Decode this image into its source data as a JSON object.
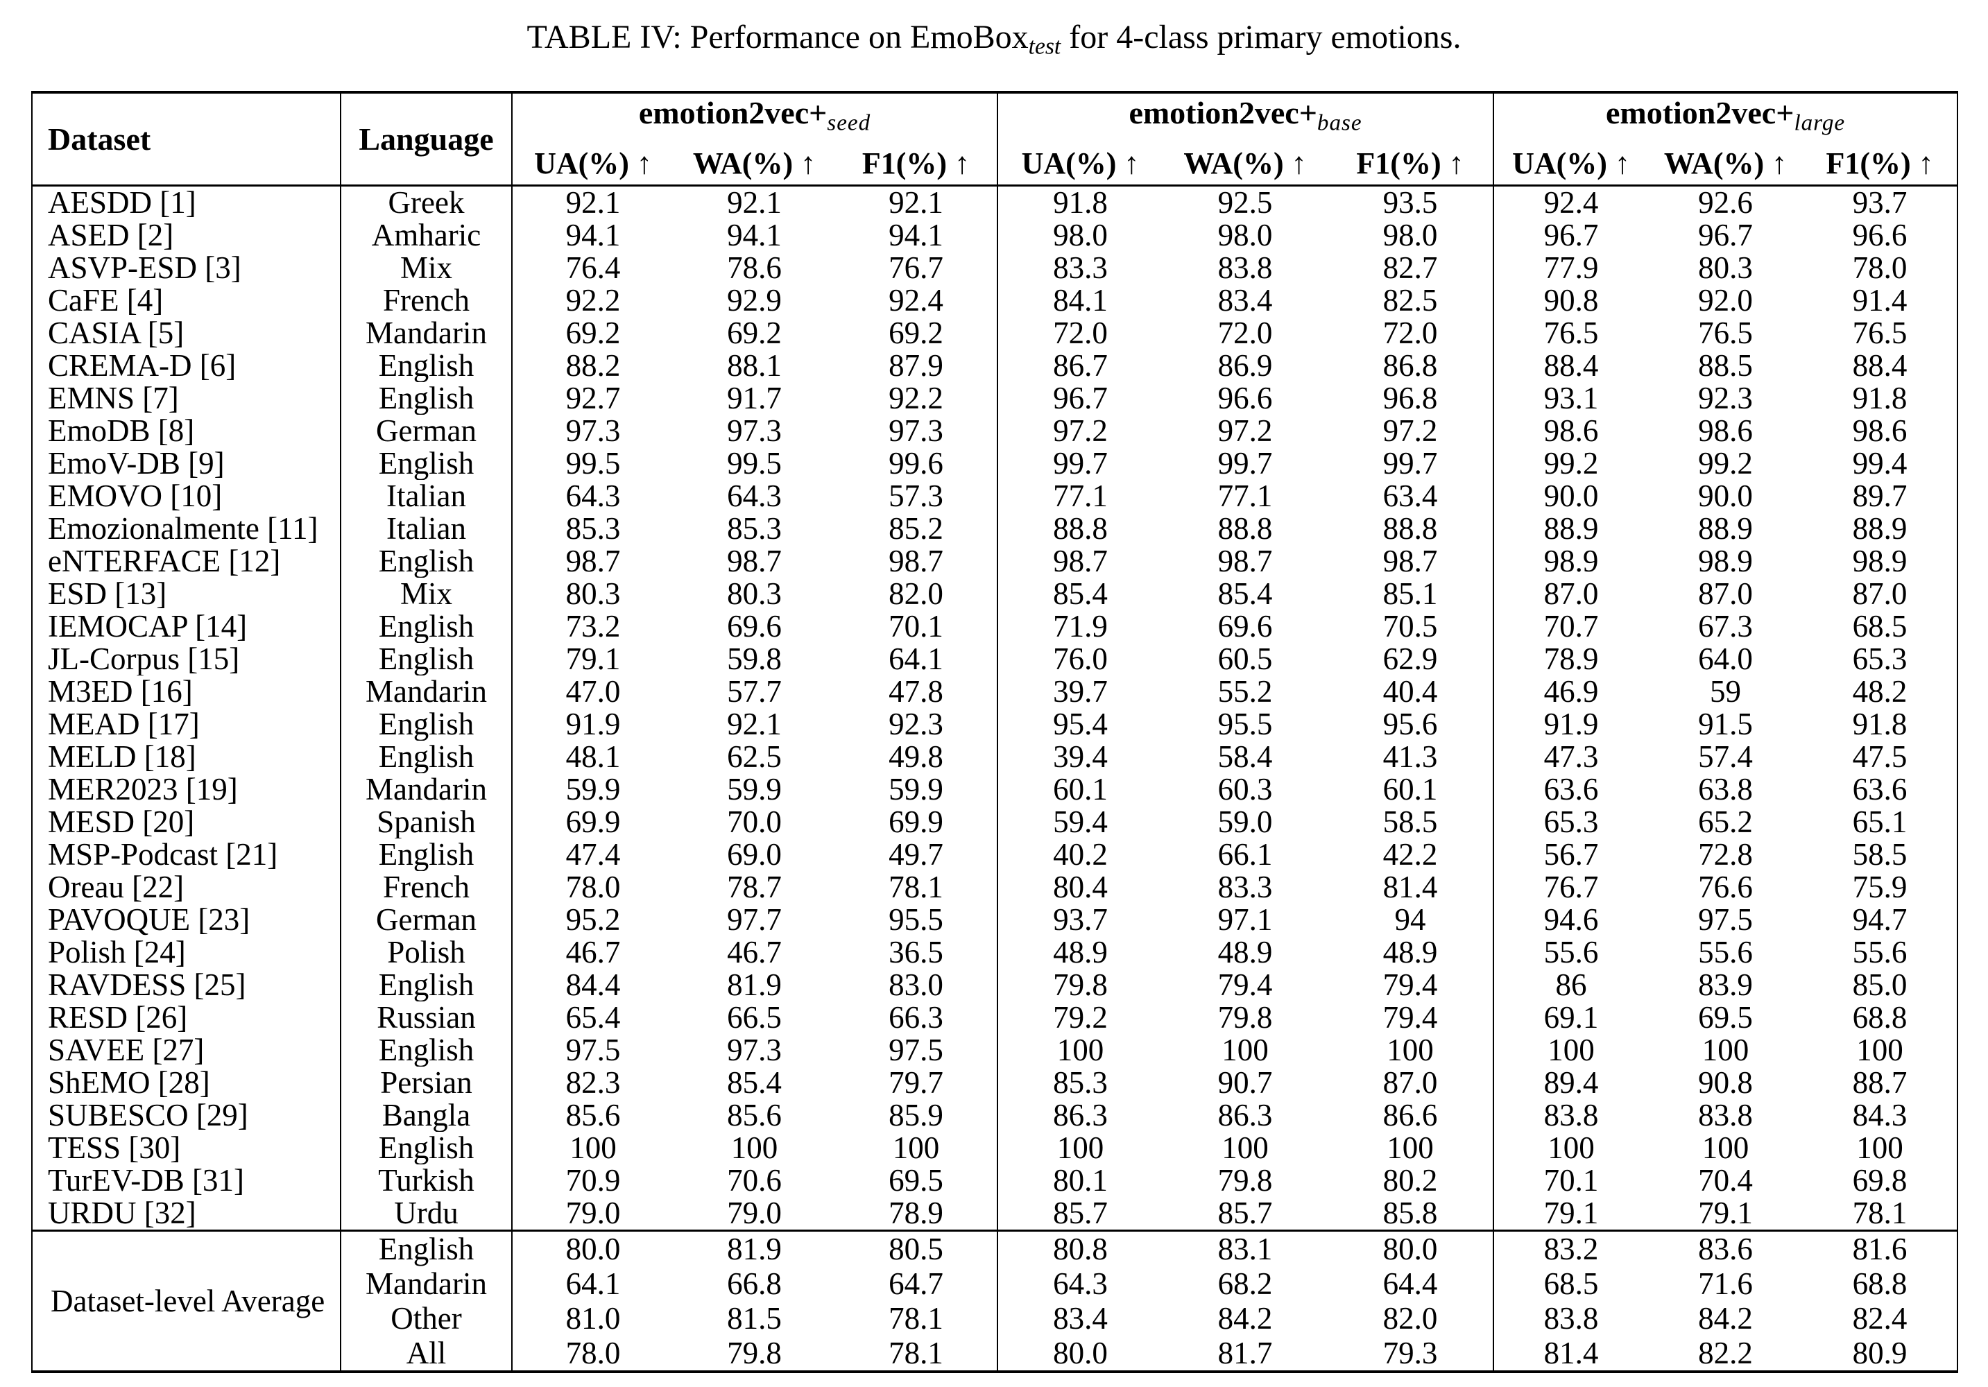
{
  "page_title": {
    "prefix": "TABLE IV: Performance on EmoBox",
    "subscript": "test",
    "suffix": " for 4-class primary emotions."
  },
  "colors": {
    "text": "#000000",
    "background": "#ffffff",
    "rule": "#000000"
  },
  "table": {
    "columns": {
      "dataset": "Dataset",
      "language": "Language"
    },
    "groups": [
      {
        "name": "emotion2vec+",
        "subscript": "seed",
        "metrics": [
          "UA(%) ↑",
          "WA(%) ↑",
          "F1(%) ↑"
        ]
      },
      {
        "name": "emotion2vec+",
        "subscript": "base",
        "metrics": [
          "UA(%) ↑",
          "WA(%) ↑",
          "F1(%) ↑"
        ]
      },
      {
        "name": "emotion2vec+",
        "subscript": "large",
        "metrics": [
          "UA(%) ↑",
          "WA(%) ↑",
          "F1(%) ↑"
        ]
      }
    ],
    "rows": [
      {
        "dataset": "AESDD [1]",
        "language": "Greek",
        "seed": [
          "92.1",
          "92.1",
          "92.1"
        ],
        "base": [
          "91.8",
          "92.5",
          "93.5"
        ],
        "large": [
          "92.4",
          "92.6",
          "93.7"
        ]
      },
      {
        "dataset": "ASED [2]",
        "language": "Amharic",
        "seed": [
          "94.1",
          "94.1",
          "94.1"
        ],
        "base": [
          "98.0",
          "98.0",
          "98.0"
        ],
        "large": [
          "96.7",
          "96.7",
          "96.6"
        ]
      },
      {
        "dataset": "ASVP-ESD [3]",
        "language": "Mix",
        "seed": [
          "76.4",
          "78.6",
          "76.7"
        ],
        "base": [
          "83.3",
          "83.8",
          "82.7"
        ],
        "large": [
          "77.9",
          "80.3",
          "78.0"
        ]
      },
      {
        "dataset": "CaFE [4]",
        "language": "French",
        "seed": [
          "92.2",
          "92.9",
          "92.4"
        ],
        "base": [
          "84.1",
          "83.4",
          "82.5"
        ],
        "large": [
          "90.8",
          "92.0",
          "91.4"
        ]
      },
      {
        "dataset": "CASIA [5]",
        "language": "Mandarin",
        "seed": [
          "69.2",
          "69.2",
          "69.2"
        ],
        "base": [
          "72.0",
          "72.0",
          "72.0"
        ],
        "large": [
          "76.5",
          "76.5",
          "76.5"
        ]
      },
      {
        "dataset": "CREMA-D [6]",
        "language": "English",
        "seed": [
          "88.2",
          "88.1",
          "87.9"
        ],
        "base": [
          "86.7",
          "86.9",
          "86.8"
        ],
        "large": [
          "88.4",
          "88.5",
          "88.4"
        ]
      },
      {
        "dataset": "EMNS [7]",
        "language": "English",
        "seed": [
          "92.7",
          "91.7",
          "92.2"
        ],
        "base": [
          "96.7",
          "96.6",
          "96.8"
        ],
        "large": [
          "93.1",
          "92.3",
          "91.8"
        ]
      },
      {
        "dataset": "EmoDB [8]",
        "language": "German",
        "seed": [
          "97.3",
          "97.3",
          "97.3"
        ],
        "base": [
          "97.2",
          "97.2",
          "97.2"
        ],
        "large": [
          "98.6",
          "98.6",
          "98.6"
        ]
      },
      {
        "dataset": "EmoV-DB [9]",
        "language": "English",
        "seed": [
          "99.5",
          "99.5",
          "99.6"
        ],
        "base": [
          "99.7",
          "99.7",
          "99.7"
        ],
        "large": [
          "99.2",
          "99.2",
          "99.4"
        ]
      },
      {
        "dataset": "EMOVO [10]",
        "language": "Italian",
        "seed": [
          "64.3",
          "64.3",
          "57.3"
        ],
        "base": [
          "77.1",
          "77.1",
          "63.4"
        ],
        "large": [
          "90.0",
          "90.0",
          "89.7"
        ]
      },
      {
        "dataset": "Emozionalmente [11]",
        "language": "Italian",
        "seed": [
          "85.3",
          "85.3",
          "85.2"
        ],
        "base": [
          "88.8",
          "88.8",
          "88.8"
        ],
        "large": [
          "88.9",
          "88.9",
          "88.9"
        ]
      },
      {
        "dataset": "eNTERFACE [12]",
        "language": "English",
        "seed": [
          "98.7",
          "98.7",
          "98.7"
        ],
        "base": [
          "98.7",
          "98.7",
          "98.7"
        ],
        "large": [
          "98.9",
          "98.9",
          "98.9"
        ]
      },
      {
        "dataset": "ESD [13]",
        "language": "Mix",
        "seed": [
          "80.3",
          "80.3",
          "82.0"
        ],
        "base": [
          "85.4",
          "85.4",
          "85.1"
        ],
        "large": [
          "87.0",
          "87.0",
          "87.0"
        ]
      },
      {
        "dataset": "IEMOCAP [14]",
        "language": "English",
        "seed": [
          "73.2",
          "69.6",
          "70.1"
        ],
        "base": [
          "71.9",
          "69.6",
          "70.5"
        ],
        "large": [
          "70.7",
          "67.3",
          "68.5"
        ]
      },
      {
        "dataset": "JL-Corpus [15]",
        "language": "English",
        "seed": [
          "79.1",
          "59.8",
          "64.1"
        ],
        "base": [
          "76.0",
          "60.5",
          "62.9"
        ],
        "large": [
          "78.9",
          "64.0",
          "65.3"
        ]
      },
      {
        "dataset": "M3ED [16]",
        "language": "Mandarin",
        "seed": [
          "47.0",
          "57.7",
          "47.8"
        ],
        "base": [
          "39.7",
          "55.2",
          "40.4"
        ],
        "large": [
          "46.9",
          "59",
          "48.2"
        ]
      },
      {
        "dataset": "MEAD [17]",
        "language": "English",
        "seed": [
          "91.9",
          "92.1",
          "92.3"
        ],
        "base": [
          "95.4",
          "95.5",
          "95.6"
        ],
        "large": [
          "91.9",
          "91.5",
          "91.8"
        ]
      },
      {
        "dataset": "MELD [18]",
        "language": "English",
        "seed": [
          "48.1",
          "62.5",
          "49.8"
        ],
        "base": [
          "39.4",
          "58.4",
          "41.3"
        ],
        "large": [
          "47.3",
          "57.4",
          "47.5"
        ]
      },
      {
        "dataset": "MER2023 [19]",
        "language": "Mandarin",
        "seed": [
          "59.9",
          "59.9",
          "59.9"
        ],
        "base": [
          "60.1",
          "60.3",
          "60.1"
        ],
        "large": [
          "63.6",
          "63.8",
          "63.6"
        ]
      },
      {
        "dataset": "MESD [20]",
        "language": "Spanish",
        "seed": [
          "69.9",
          "70.0",
          "69.9"
        ],
        "base": [
          "59.4",
          "59.0",
          "58.5"
        ],
        "large": [
          "65.3",
          "65.2",
          "65.1"
        ]
      },
      {
        "dataset": "MSP-Podcast [21]",
        "language": "English",
        "seed": [
          "47.4",
          "69.0",
          "49.7"
        ],
        "base": [
          "40.2",
          "66.1",
          "42.2"
        ],
        "large": [
          "56.7",
          "72.8",
          "58.5"
        ]
      },
      {
        "dataset": "Oreau [22]",
        "language": "French",
        "seed": [
          "78.0",
          "78.7",
          "78.1"
        ],
        "base": [
          "80.4",
          "83.3",
          "81.4"
        ],
        "large": [
          "76.7",
          "76.6",
          "75.9"
        ]
      },
      {
        "dataset": "PAVOQUE [23]",
        "language": "German",
        "seed": [
          "95.2",
          "97.7",
          "95.5"
        ],
        "base": [
          "93.7",
          "97.1",
          "94"
        ],
        "large": [
          "94.6",
          "97.5",
          "94.7"
        ]
      },
      {
        "dataset": "Polish [24]",
        "language": "Polish",
        "seed": [
          "46.7",
          "46.7",
          "36.5"
        ],
        "base": [
          "48.9",
          "48.9",
          "48.9"
        ],
        "large": [
          "55.6",
          "55.6",
          "55.6"
        ]
      },
      {
        "dataset": "RAVDESS [25]",
        "language": "English",
        "seed": [
          "84.4",
          "81.9",
          "83.0"
        ],
        "base": [
          "79.8",
          "79.4",
          "79.4"
        ],
        "large": [
          "86",
          "83.9",
          "85.0"
        ]
      },
      {
        "dataset": "RESD [26]",
        "language": "Russian",
        "seed": [
          "65.4",
          "66.5",
          "66.3"
        ],
        "base": [
          "79.2",
          "79.8",
          "79.4"
        ],
        "large": [
          "69.1",
          "69.5",
          "68.8"
        ]
      },
      {
        "dataset": "SAVEE [27]",
        "language": "English",
        "seed": [
          "97.5",
          "97.3",
          "97.5"
        ],
        "base": [
          "100",
          "100",
          "100"
        ],
        "large": [
          "100",
          "100",
          "100"
        ]
      },
      {
        "dataset": "ShEMO [28]",
        "language": "Persian",
        "seed": [
          "82.3",
          "85.4",
          "79.7"
        ],
        "base": [
          "85.3",
          "90.7",
          "87.0"
        ],
        "large": [
          "89.4",
          "90.8",
          "88.7"
        ]
      },
      {
        "dataset": "SUBESCO [29]",
        "language": "Bangla",
        "seed": [
          "85.6",
          "85.6",
          "85.9"
        ],
        "base": [
          "86.3",
          "86.3",
          "86.6"
        ],
        "large": [
          "83.8",
          "83.8",
          "84.3"
        ]
      },
      {
        "dataset": "TESS [30]",
        "language": "English",
        "seed": [
          "100",
          "100",
          "100"
        ],
        "base": [
          "100",
          "100",
          "100"
        ],
        "large": [
          "100",
          "100",
          "100"
        ]
      },
      {
        "dataset": "TurEV-DB [31]",
        "language": "Turkish",
        "seed": [
          "70.9",
          "70.6",
          "69.5"
        ],
        "base": [
          "80.1",
          "79.8",
          "80.2"
        ],
        "large": [
          "70.1",
          "70.4",
          "69.8"
        ]
      },
      {
        "dataset": "URDU [32]",
        "language": "Urdu",
        "seed": [
          "79.0",
          "79.0",
          "78.9"
        ],
        "base": [
          "85.7",
          "85.7",
          "85.8"
        ],
        "large": [
          "79.1",
          "79.1",
          "78.1"
        ]
      }
    ],
    "average": {
      "label": "Dataset-level Average",
      "rows": [
        {
          "language": "English",
          "seed": [
            "80.0",
            "81.9",
            "80.5"
          ],
          "base": [
            "80.8",
            "83.1",
            "80.0"
          ],
          "large": [
            "83.2",
            "83.6",
            "81.6"
          ]
        },
        {
          "language": "Mandarin",
          "seed": [
            "64.1",
            "66.8",
            "64.7"
          ],
          "base": [
            "64.3",
            "68.2",
            "64.4"
          ],
          "large": [
            "68.5",
            "71.6",
            "68.8"
          ]
        },
        {
          "language": "Other",
          "seed": [
            "81.0",
            "81.5",
            "78.1"
          ],
          "base": [
            "83.4",
            "84.2",
            "82.0"
          ],
          "large": [
            "83.8",
            "84.2",
            "82.4"
          ]
        },
        {
          "language": "All",
          "seed": [
            "78.0",
            "79.8",
            "78.1"
          ],
          "base": [
            "80.0",
            "81.7",
            "79.3"
          ],
          "large": [
            "81.4",
            "82.2",
            "80.9"
          ]
        }
      ]
    }
  }
}
